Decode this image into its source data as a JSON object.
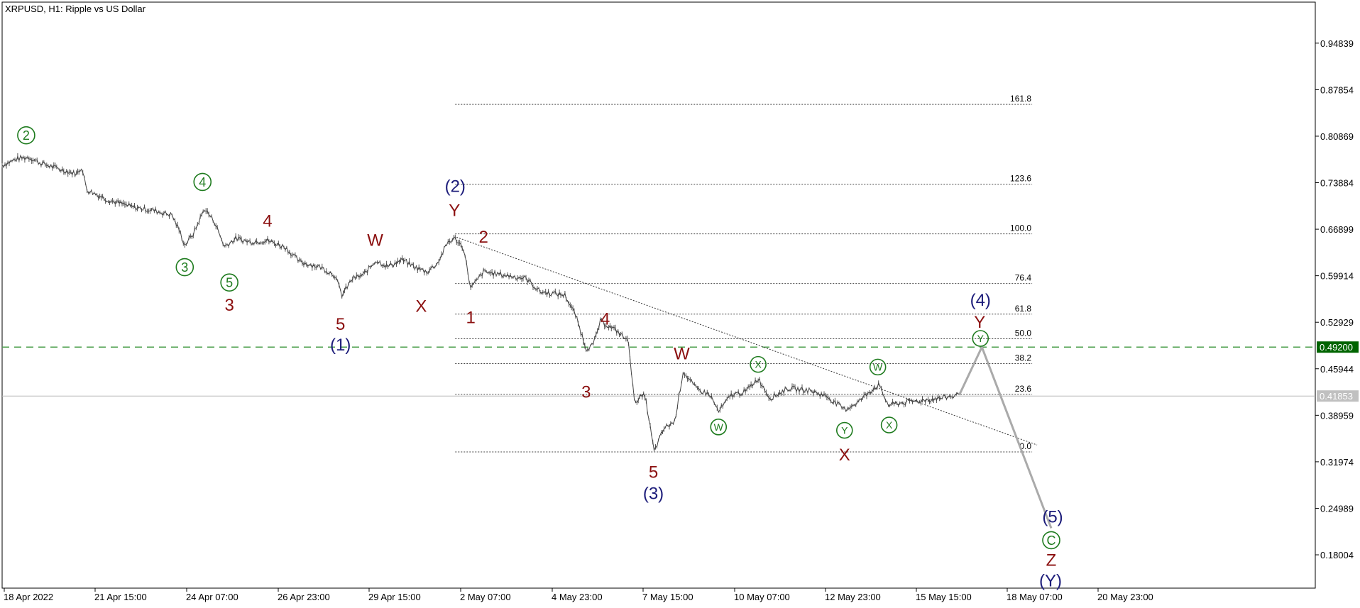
{
  "chart_data": {
    "type": "line",
    "title": "XRPUSD, H1:  Ripple vs US Dollar",
    "y_ticks": [
      "0.94839",
      "0.87854",
      "0.80869",
      "0.73884",
      "0.66899",
      "0.59914",
      "0.52929",
      "0.45944",
      "0.38959",
      "0.31974",
      "0.24989",
      "0.18004"
    ],
    "y_range": [
      0.13,
      1.01
    ],
    "x_ticks": [
      "18 Apr 2022",
      "21 Apr 15:00",
      "24 Apr 07:00",
      "26 Apr 23:00",
      "29 Apr 15:00",
      "2 May 07:00",
      "4 May 23:00",
      "7 May 15:00",
      "10 May 07:00",
      "12 May 23:00",
      "15 May 15:00",
      "18 May 07:00",
      "20 May 23:00"
    ],
    "current_price": {
      "label": "0.41853",
      "value": 0.4185
    },
    "level": {
      "label": "0.49200",
      "value": 0.492,
      "color": "#006400"
    },
    "price_path": [
      {
        "t": 0,
        "v": 0.765
      },
      {
        "t": 22,
        "v": 0.775
      },
      {
        "t": 38,
        "v": 0.777
      },
      {
        "t": 55,
        "v": 0.768
      },
      {
        "t": 85,
        "v": 0.758
      },
      {
        "t": 105,
        "v": 0.752
      },
      {
        "t": 112,
        "v": 0.762
      },
      {
        "t": 120,
        "v": 0.728
      },
      {
        "t": 150,
        "v": 0.713
      },
      {
        "t": 185,
        "v": 0.702
      },
      {
        "t": 215,
        "v": 0.697
      },
      {
        "t": 240,
        "v": 0.69
      },
      {
        "t": 250,
        "v": 0.668
      },
      {
        "t": 258,
        "v": 0.645
      },
      {
        "t": 270,
        "v": 0.662
      },
      {
        "t": 286,
        "v": 0.7
      },
      {
        "t": 300,
        "v": 0.68
      },
      {
        "t": 314,
        "v": 0.643
      },
      {
        "t": 330,
        "v": 0.655
      },
      {
        "t": 350,
        "v": 0.65
      },
      {
        "t": 375,
        "v": 0.652
      },
      {
        "t": 400,
        "v": 0.642
      },
      {
        "t": 420,
        "v": 0.62
      },
      {
        "t": 450,
        "v": 0.612
      },
      {
        "t": 470,
        "v": 0.6
      },
      {
        "t": 480,
        "v": 0.57
      },
      {
        "t": 495,
        "v": 0.595
      },
      {
        "t": 510,
        "v": 0.6
      },
      {
        "t": 528,
        "v": 0.622
      },
      {
        "t": 545,
        "v": 0.613
      },
      {
        "t": 565,
        "v": 0.623
      },
      {
        "t": 585,
        "v": 0.611
      },
      {
        "t": 600,
        "v": 0.605
      },
      {
        "t": 615,
        "v": 0.618
      },
      {
        "t": 630,
        "v": 0.65
      },
      {
        "t": 640,
        "v": 0.655
      },
      {
        "t": 652,
        "v": 0.64
      },
      {
        "t": 662,
        "v": 0.58
      },
      {
        "t": 680,
        "v": 0.605
      },
      {
        "t": 710,
        "v": 0.6
      },
      {
        "t": 740,
        "v": 0.595
      },
      {
        "t": 760,
        "v": 0.575
      },
      {
        "t": 795,
        "v": 0.57
      },
      {
        "t": 810,
        "v": 0.54
      },
      {
        "t": 825,
        "v": 0.49
      },
      {
        "t": 835,
        "v": 0.495
      },
      {
        "t": 845,
        "v": 0.53
      },
      {
        "t": 855,
        "v": 0.525
      },
      {
        "t": 870,
        "v": 0.515
      },
      {
        "t": 885,
        "v": 0.5
      },
      {
        "t": 893,
        "v": 0.41
      },
      {
        "t": 908,
        "v": 0.42
      },
      {
        "t": 921,
        "v": 0.335
      },
      {
        "t": 935,
        "v": 0.37
      },
      {
        "t": 950,
        "v": 0.38
      },
      {
        "t": 962,
        "v": 0.455
      },
      {
        "t": 980,
        "v": 0.43
      },
      {
        "t": 1000,
        "v": 0.42
      },
      {
        "t": 1012,
        "v": 0.395
      },
      {
        "t": 1030,
        "v": 0.42
      },
      {
        "t": 1050,
        "v": 0.425
      },
      {
        "t": 1068,
        "v": 0.445
      },
      {
        "t": 1085,
        "v": 0.415
      },
      {
        "t": 1110,
        "v": 0.43
      },
      {
        "t": 1140,
        "v": 0.427
      },
      {
        "t": 1165,
        "v": 0.418
      },
      {
        "t": 1190,
        "v": 0.398
      },
      {
        "t": 1210,
        "v": 0.41
      },
      {
        "t": 1225,
        "v": 0.425
      },
      {
        "t": 1238,
        "v": 0.435
      },
      {
        "t": 1252,
        "v": 0.405
      },
      {
        "t": 1270,
        "v": 0.408
      },
      {
        "t": 1300,
        "v": 0.412
      },
      {
        "t": 1330,
        "v": 0.416
      },
      {
        "t": 1352,
        "v": 0.42
      }
    ],
    "projection": [
      {
        "t": 1352,
        "v": 0.42
      },
      {
        "t": 1384,
        "v": 0.492
      },
      {
        "t": 1482,
        "v": 0.22
      }
    ],
    "fibonacci": {
      "t_start": 640,
      "t_end": 1455,
      "levels": [
        {
          "label": "161.8",
          "value": 0.8565
        },
        {
          "label": "123.6",
          "value": 0.7365
        },
        {
          "label": "100.0",
          "value": 0.662
        },
        {
          "label": "76.4",
          "value": 0.5875
        },
        {
          "label": "61.8",
          "value": 0.5415
        },
        {
          "label": "50.0",
          "value": 0.5045
        },
        {
          "label": "38.2",
          "value": 0.4672
        },
        {
          "label": "23.6",
          "value": 0.421
        },
        {
          "label": "0.0",
          "value": 0.3345
        }
      ]
    },
    "trendline": [
      {
        "t": 642,
        "v": 0.657
      },
      {
        "t": 1462,
        "v": 0.345
      }
    ],
    "wave_labels": [
      {
        "text": "2",
        "t": 34,
        "v": 0.81,
        "style": "circle-green"
      },
      {
        "text": "4",
        "t": 283,
        "v": 0.74,
        "style": "circle-green"
      },
      {
        "text": "3",
        "t": 258,
        "v": 0.612,
        "style": "circle-green"
      },
      {
        "text": "5",
        "t": 321,
        "v": 0.589,
        "style": "circle-green"
      },
      {
        "text": "3",
        "t": 321,
        "v": 0.556,
        "style": "red"
      },
      {
        "text": "4",
        "t": 375,
        "v": 0.682,
        "style": "red"
      },
      {
        "text": "W",
        "t": 527,
        "v": 0.653,
        "style": "red"
      },
      {
        "text": "X",
        "t": 592,
        "v": 0.554,
        "style": "red"
      },
      {
        "text": "5",
        "t": 478,
        "v": 0.527,
        "style": "red"
      },
      {
        "text": "(1)",
        "t": 478,
        "v": 0.496,
        "style": "navy"
      },
      {
        "text": "(2)",
        "t": 640,
        "v": 0.734,
        "style": "navy"
      },
      {
        "text": "Y",
        "t": 639,
        "v": 0.698,
        "style": "red"
      },
      {
        "text": "2",
        "t": 680,
        "v": 0.658,
        "style": "red"
      },
      {
        "text": "1",
        "t": 662,
        "v": 0.537,
        "style": "red"
      },
      {
        "text": "4",
        "t": 852,
        "v": 0.535,
        "style": "red"
      },
      {
        "text": "3",
        "t": 825,
        "v": 0.425,
        "style": "red"
      },
      {
        "text": "5",
        "t": 920,
        "v": 0.305,
        "style": "red"
      },
      {
        "text": "(3)",
        "t": 920,
        "v": 0.273,
        "style": "navy"
      },
      {
        "text": "W",
        "t": 960,
        "v": 0.483,
        "style": "red"
      },
      {
        "text": "W",
        "t": 1012,
        "v": 0.372,
        "style": "circle-green-sm"
      },
      {
        "text": "X",
        "t": 1068,
        "v": 0.466,
        "style": "circle-green-sm"
      },
      {
        "text": "Y",
        "t": 1190,
        "v": 0.367,
        "style": "circle-green-sm"
      },
      {
        "text": "X",
        "t": 1190,
        "v": 0.331,
        "style": "red"
      },
      {
        "text": "W",
        "t": 1237,
        "v": 0.462,
        "style": "circle-green-sm"
      },
      {
        "text": "X",
        "t": 1253,
        "v": 0.375,
        "style": "circle-green-sm"
      },
      {
        "text": "(4)",
        "t": 1382,
        "v": 0.563,
        "style": "navy"
      },
      {
        "text": "Y",
        "t": 1381,
        "v": 0.53,
        "style": "red"
      },
      {
        "text": "Y",
        "t": 1382,
        "v": 0.505,
        "style": "circle-green-sm"
      },
      {
        "text": "(5)",
        "t": 1484,
        "v": 0.238,
        "style": "navy"
      },
      {
        "text": "C",
        "t": 1482,
        "v": 0.202,
        "style": "circle-green"
      },
      {
        "text": "Z",
        "t": 1482,
        "v": 0.173,
        "style": "red"
      },
      {
        "text": "(Y)",
        "t": 1481,
        "v": 0.142,
        "style": "navy"
      }
    ],
    "grid": false
  }
}
